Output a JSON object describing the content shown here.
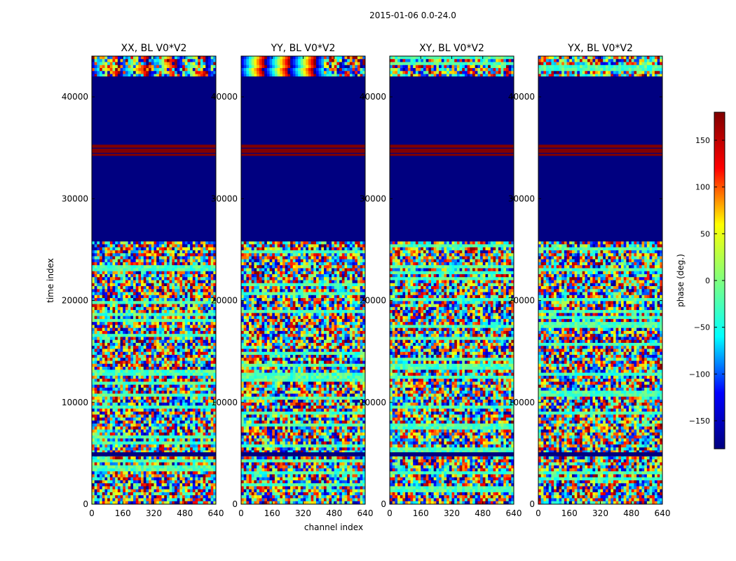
{
  "figure": {
    "suptitle": "2015-01-06 0.0-24.0",
    "xlabel": "channel index",
    "ylabel": "time index",
    "colorbar_label": "phase (deg.)"
  },
  "chart_data": {
    "type": "heatmap",
    "colormap": "jet",
    "colormap_stops": [
      "#00007f",
      "#0000ff",
      "#00ffff",
      "#7fff7f",
      "#ffff00",
      "#ff0000",
      "#7f0000"
    ],
    "xlim": [
      0,
      640
    ],
    "ylim": [
      0,
      44000
    ],
    "xticks": [
      "0",
      "160",
      "320",
      "480",
      "640"
    ],
    "yticks": [
      "0",
      "10000",
      "20000",
      "30000",
      "40000"
    ],
    "colorbar": {
      "vmin": -180,
      "vmax": 180,
      "ticks": [
        "−150",
        "−100",
        "−50",
        "0",
        "50",
        "100",
        "150"
      ],
      "tick_values": [
        -150,
        -100,
        -50,
        0,
        50,
        100,
        150
      ]
    },
    "panels": [
      {
        "title": "XX, BL V0*V2",
        "fringes": "moderate",
        "fringe_period_channels": 150
      },
      {
        "title": "YY, BL V0*V2",
        "fringes": "strong",
        "fringe_period_channels": 130
      },
      {
        "title": "XY, BL V0*V2",
        "fringes": "none",
        "fringe_period_channels": 0
      },
      {
        "title": "YX, BL V0*V2",
        "fringes": "none",
        "fringe_period_channels": 0
      }
    ],
    "bands": [
      {
        "label": "flagged (-180 deg)",
        "y_from": 25800,
        "y_to": 42000,
        "value": -180
      },
      {
        "label": "flagged (+180 deg)",
        "y_from": 34200,
        "y_to": 35300,
        "value": 180
      },
      {
        "label": "flagged (-180 deg)",
        "y_from": 4700,
        "y_to": 5100,
        "value": -180
      }
    ]
  }
}
